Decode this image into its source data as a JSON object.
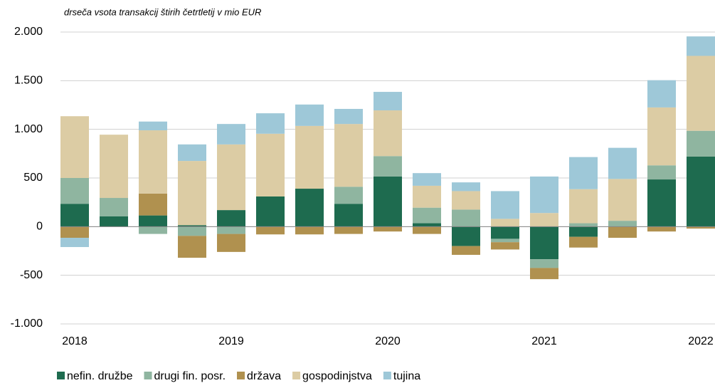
{
  "chart_data": {
    "type": "stacked_bar",
    "subtitle": "drseča vsota transakcij štirih četrtletij v mio EUR",
    "categories": [
      "2018",
      null,
      null,
      null,
      "2019",
      null,
      null,
      null,
      "2020",
      null,
      null,
      null,
      "2021",
      null,
      null,
      null,
      "2022"
    ],
    "series": [
      {
        "name": "nefin. družbe",
        "color": "#1e6b4f",
        "values": [
          235,
          105,
          115,
          15,
          170,
          310,
          390,
          235,
          515,
          35,
          -200,
          -125,
          -335,
          -105,
          0,
          485,
          720
        ]
      },
      {
        "name": "drugi fin. posr.",
        "color": "#8fb5a0",
        "values": [
          265,
          190,
          -75,
          -95,
          -75,
          0,
          0,
          175,
          210,
          160,
          175,
          -35,
          -90,
          35,
          60,
          145,
          265
        ]
      },
      {
        "name": "država",
        "color": "#b0914f",
        "values": [
          -115,
          0,
          225,
          -225,
          -185,
          -80,
          -80,
          -75,
          -50,
          -75,
          -90,
          -75,
          -115,
          -110,
          -115,
          -50,
          -20
        ]
      },
      {
        "name": "gospodinjstva",
        "color": "#dccca4",
        "values": [
          635,
          650,
          650,
          660,
          675,
          645,
          645,
          645,
          470,
          225,
          190,
          80,
          140,
          350,
          430,
          595,
          770
        ]
      },
      {
        "name": "tujina",
        "color": "#9ec8d8",
        "values": [
          -95,
          0,
          90,
          170,
          210,
          210,
          220,
          155,
          190,
          130,
          90,
          285,
          375,
          330,
          320,
          280,
          200
        ]
      }
    ],
    "ylim": [
      -1000,
      2000
    ],
    "yticks": [
      {
        "value": -1000,
        "label": "-1.000"
      },
      -500,
      0,
      500,
      {
        "value": 1000,
        "label": "1.000"
      },
      {
        "value": 1500,
        "label": "1.500"
      },
      {
        "value": 2000,
        "label": "2.000"
      }
    ],
    "grid": true
  }
}
